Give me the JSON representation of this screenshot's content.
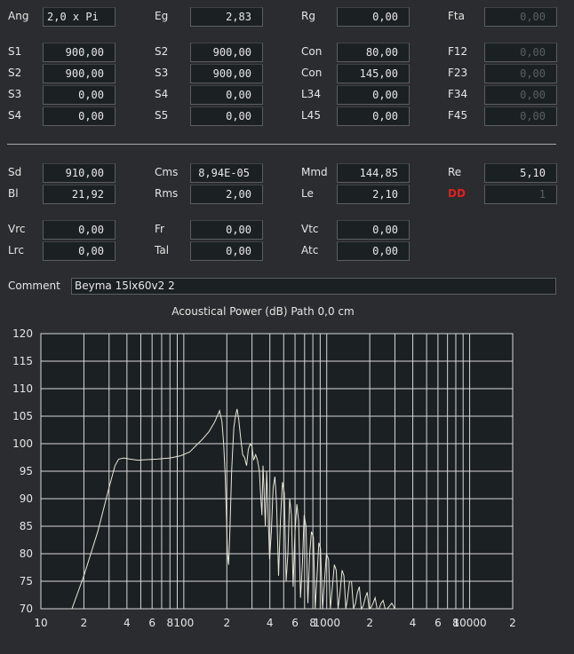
{
  "params": {
    "ang": {
      "label": "Ang",
      "value": "2,0 x Pi"
    },
    "eg": {
      "label": "Eg",
      "value": "2,83"
    },
    "rg": {
      "label": "Rg",
      "value": "0,00"
    },
    "fta": {
      "label": "Fta",
      "value": "0,00"
    },
    "s1": {
      "label": "S1",
      "value": "900,00"
    },
    "s2a": {
      "label": "S2",
      "value": "900,00"
    },
    "con1": {
      "label": "Con",
      "value": "80,00"
    },
    "f12": {
      "label": "F12",
      "value": "0,00"
    },
    "s2b": {
      "label": "S2",
      "value": "900,00"
    },
    "s3a": {
      "label": "S3",
      "value": "900,00"
    },
    "con2": {
      "label": "Con",
      "value": "145,00"
    },
    "f23": {
      "label": "F23",
      "value": "0,00"
    },
    "s3b": {
      "label": "S3",
      "value": "0,00"
    },
    "s4a": {
      "label": "S4",
      "value": "0,00"
    },
    "l34": {
      "label": "L34",
      "value": "0,00"
    },
    "f34": {
      "label": "F34",
      "value": "0,00"
    },
    "s4b": {
      "label": "S4",
      "value": "0,00"
    },
    "s5": {
      "label": "S5",
      "value": "0,00"
    },
    "l45": {
      "label": "L45",
      "value": "0,00"
    },
    "f45": {
      "label": "F45",
      "value": "0,00"
    },
    "sd": {
      "label": "Sd",
      "value": "910,00"
    },
    "cms": {
      "label": "Cms",
      "value": "8,94E-05"
    },
    "mmd": {
      "label": "Mmd",
      "value": "144,85"
    },
    "re": {
      "label": "Re",
      "value": "5,10"
    },
    "bl": {
      "label": "Bl",
      "value": "21,92"
    },
    "rms": {
      "label": "Rms",
      "value": "2,00"
    },
    "le": {
      "label": "Le",
      "value": "2,10"
    },
    "dd": {
      "label": "DD",
      "value": "1"
    },
    "vrc": {
      "label": "Vrc",
      "value": "0,00"
    },
    "fr": {
      "label": "Fr",
      "value": "0,00"
    },
    "vtc": {
      "label": "Vtc",
      "value": "0,00"
    },
    "lrc": {
      "label": "Lrc",
      "value": "0,00"
    },
    "tal": {
      "label": "Tal",
      "value": "0,00"
    },
    "atc": {
      "label": "Atc",
      "value": "0,00"
    }
  },
  "comment": {
    "label": "Comment",
    "value": "Beyma 15lx60v2 2"
  },
  "chart_title": "Acoustical Power (dB)   Path 0,0 cm",
  "chart_data": {
    "type": "line",
    "title": "Acoustical Power (dB)   Path 0,0 cm",
    "xscale": "log",
    "xlim": [
      10,
      20000
    ],
    "ylim": [
      70,
      120
    ],
    "yticks": [
      120,
      115,
      110,
      105,
      100,
      95,
      90,
      85,
      80,
      75,
      70
    ],
    "xtick_labels": [
      {
        "x": 10,
        "label": "10"
      },
      {
        "x": 20,
        "label": "2"
      },
      {
        "x": 40,
        "label": "4"
      },
      {
        "x": 60,
        "label": "6"
      },
      {
        "x": 80,
        "label": "8"
      },
      {
        "x": 100,
        "label": "100"
      },
      {
        "x": 200,
        "label": "2"
      },
      {
        "x": 400,
        "label": "4"
      },
      {
        "x": 600,
        "label": "6"
      },
      {
        "x": 800,
        "label": "8"
      },
      {
        "x": 1000,
        "label": "1000"
      },
      {
        "x": 2000,
        "label": "2"
      },
      {
        "x": 4000,
        "label": "4"
      },
      {
        "x": 6000,
        "label": "6"
      },
      {
        "x": 8000,
        "label": "8"
      },
      {
        "x": 10000,
        "label": "10000"
      },
      {
        "x": 20000,
        "label": "2"
      }
    ],
    "grid": true,
    "background": "#2b2c2f",
    "plot_background": "#1b2023",
    "line_color": "#e8e8d8",
    "series": [
      {
        "x": [
          16.5,
          20,
          25,
          30,
          33,
          35,
          38,
          42,
          48,
          55,
          65,
          80,
          95,
          110,
          120,
          135,
          150,
          165,
          178,
          185,
          190,
          195,
          198,
          202,
          206,
          210,
          216,
          220,
          224,
          230,
          236,
          242,
          250,
          258,
          266,
          275,
          283,
          292,
          300,
          308,
          318,
          328,
          338,
          346,
          352,
          358,
          364,
          372,
          380,
          388,
          398,
          410,
          422,
          434,
          446,
          460,
          474,
          490,
          505,
          520,
          535,
          550,
          566,
          582,
          600,
          618,
          636,
          655,
          675,
          695,
          716,
          738,
          760,
          782,
          806,
          830,
          855,
          880,
          905,
          935,
          965,
          995,
          1030,
          1060,
          1095,
          1130,
          1165,
          1200,
          1240,
          1280,
          1320,
          1360,
          1400,
          1445,
          1490,
          1540,
          1590,
          1640,
          1690,
          1745,
          1800,
          1860,
          1920,
          1980,
          2040,
          2110,
          2180,
          2250,
          2320,
          2400,
          2480,
          2560,
          2650,
          2750,
          2850,
          3000
        ],
        "y": [
          70,
          76,
          84,
          92,
          96,
          97.2,
          97.4,
          97.2,
          97.0,
          97.1,
          97.2,
          97.4,
          97.8,
          98.5,
          99.5,
          100.8,
          102.2,
          104,
          106,
          104,
          100,
          94,
          88,
          80,
          78,
          84,
          95,
          99,
          103,
          105,
          106.3,
          104.5,
          101,
          98,
          97.5,
          96,
          99,
          100,
          99.5,
          97,
          98,
          97,
          95,
          90,
          87,
          96,
          92,
          85,
          95,
          88,
          79,
          84,
          92,
          94,
          89,
          76,
          86,
          93,
          91,
          75,
          80,
          90,
          87,
          74,
          84,
          89,
          86,
          72,
          78,
          87,
          85,
          71,
          80,
          84,
          83,
          70,
          76,
          82,
          81,
          70,
          75,
          80,
          79,
          70,
          74,
          78,
          77,
          70,
          73,
          77,
          76,
          70,
          72,
          75,
          75,
          70,
          71,
          73,
          74,
          70,
          70.5,
          72,
          73,
          70,
          70.2,
          71,
          72,
          70,
          70,
          71,
          71.5,
          70,
          70,
          70.5,
          71,
          70
        ]
      }
    ]
  }
}
